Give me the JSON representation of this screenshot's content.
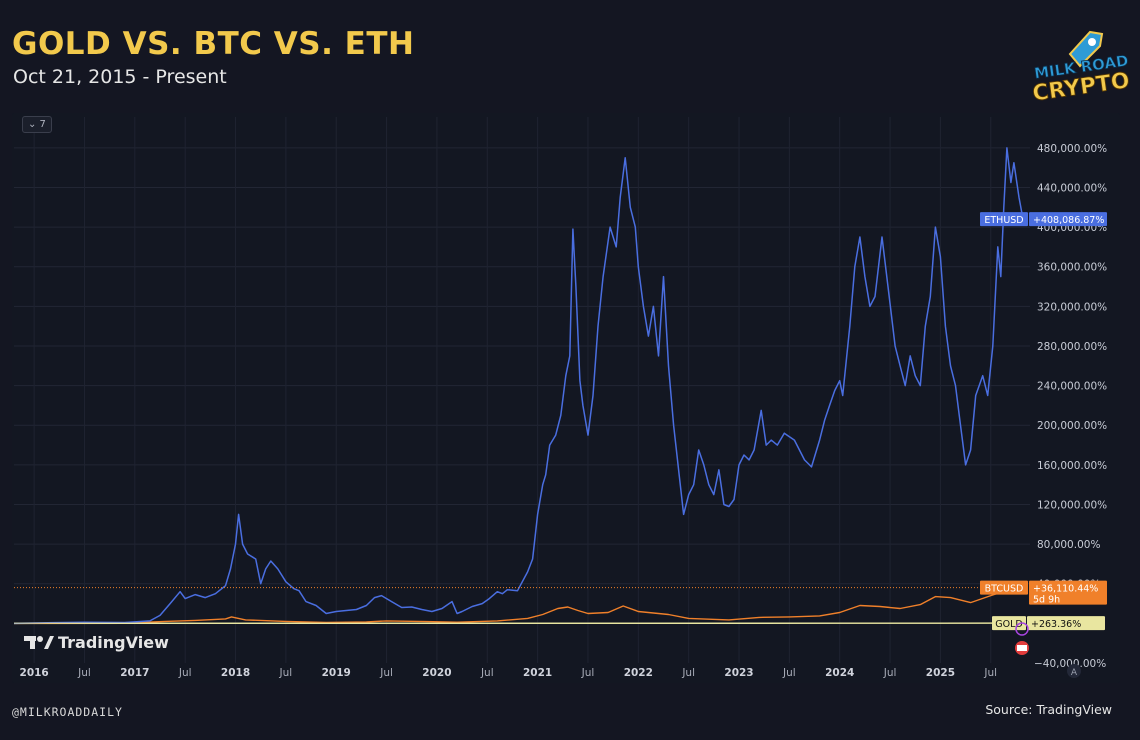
{
  "header": {
    "title": "GOLD VS. BTC VS. ETH",
    "subtitle": "Oct 21, 2015 - Present"
  },
  "logo": {
    "line1": "MILK ROAD",
    "line2": "CRYPTO"
  },
  "toolbar": {
    "collapse_label": "⌄ 7"
  },
  "watermark": {
    "brand": "TradingView",
    "icon": "tradingview-logo-icon"
  },
  "footer": {
    "handle": "@MILKROADDAILY",
    "source": "Source: TradingView"
  },
  "colors": {
    "eth": "#4a6ee0",
    "btc": "#f0802a",
    "gold": "#e9e6a0",
    "background": "#131722",
    "title": "#f2c94c"
  },
  "extra_y_ticks": [
    {
      "label": "−40,000.00%",
      "value": -40000
    }
  ],
  "price_labels": [
    {
      "symbol": "ETHUSD",
      "value_text": "+408,086.87%",
      "extra": "",
      "value": 408086.87,
      "series": "ETH"
    },
    {
      "symbol": "BTCUSD",
      "value_text": "+36,110.44%",
      "extra": "5d 9h",
      "value": 36110.44,
      "series": "BTC"
    },
    {
      "symbol": "GOLD",
      "value_text": "+263.36%",
      "extra": "",
      "value": 263.36,
      "series": "GOLD"
    }
  ],
  "scale_button": "A",
  "chart_data": {
    "type": "line",
    "title": "GOLD VS. BTC VS. ETH",
    "subtitle": "Oct 21, 2015 - Present",
    "xlabel": "",
    "ylabel": "",
    "y_unit": "% change",
    "ylim": [
      -40000,
      495000
    ],
    "y_ticks": [
      480000,
      440000,
      400000,
      360000,
      320000,
      280000,
      240000,
      200000,
      160000,
      120000,
      80000,
      40000
    ],
    "y_tick_labels": [
      "480,000.00%",
      "440,000.00%",
      "400,000.00%",
      "360,000.00%",
      "320,000.00%",
      "280,000.00%",
      "240,000.00%",
      "200,000.00%",
      "160,000.00%",
      "120,000.00%",
      "80,000.00%",
      "40,000.00%"
    ],
    "xlim": [
      2015.8,
      2025.85
    ],
    "x_ticks": [
      {
        "label": "2016",
        "x": 2016.0,
        "bold": true
      },
      {
        "label": "Jul",
        "x": 2016.5,
        "bold": false
      },
      {
        "label": "2017",
        "x": 2017.0,
        "bold": true
      },
      {
        "label": "Jul",
        "x": 2017.5,
        "bold": false
      },
      {
        "label": "2018",
        "x": 2018.0,
        "bold": true
      },
      {
        "label": "Jul",
        "x": 2018.5,
        "bold": false
      },
      {
        "label": "2019",
        "x": 2019.0,
        "bold": true
      },
      {
        "label": "Jul",
        "x": 2019.5,
        "bold": false
      },
      {
        "label": "2020",
        "x": 2020.0,
        "bold": true
      },
      {
        "label": "Jul",
        "x": 2020.5,
        "bold": false
      },
      {
        "label": "2021",
        "x": 2021.0,
        "bold": true
      },
      {
        "label": "Jul",
        "x": 2021.5,
        "bold": false
      },
      {
        "label": "2022",
        "x": 2022.0,
        "bold": true
      },
      {
        "label": "Jul",
        "x": 2022.5,
        "bold": false
      },
      {
        "label": "2023",
        "x": 2023.0,
        "bold": true
      },
      {
        "label": "Jul",
        "x": 2023.5,
        "bold": false
      },
      {
        "label": "2024",
        "x": 2024.0,
        "bold": true
      },
      {
        "label": "Jul",
        "x": 2024.5,
        "bold": false
      },
      {
        "label": "2025",
        "x": 2025.0,
        "bold": true
      },
      {
        "label": "Jul",
        "x": 2025.5,
        "bold": false
      }
    ],
    "grid": true,
    "legend": "none",
    "series": [
      {
        "name": "ETHUSD",
        "color": "#4a6ee0",
        "points": [
          [
            2015.8,
            0
          ],
          [
            2016.2,
            800
          ],
          [
            2016.5,
            1200
          ],
          [
            2016.9,
            900
          ],
          [
            2017.15,
            2500
          ],
          [
            2017.25,
            8000
          ],
          [
            2017.35,
            20000
          ],
          [
            2017.45,
            32000
          ],
          [
            2017.5,
            25000
          ],
          [
            2017.6,
            29000
          ],
          [
            2017.7,
            26000
          ],
          [
            2017.8,
            30000
          ],
          [
            2017.9,
            38000
          ],
          [
            2017.95,
            55000
          ],
          [
            2018.0,
            80000
          ],
          [
            2018.03,
            110000
          ],
          [
            2018.07,
            80000
          ],
          [
            2018.12,
            70000
          ],
          [
            2018.2,
            65000
          ],
          [
            2018.25,
            40000
          ],
          [
            2018.3,
            55000
          ],
          [
            2018.35,
            63000
          ],
          [
            2018.42,
            55000
          ],
          [
            2018.5,
            42000
          ],
          [
            2018.58,
            35000
          ],
          [
            2018.63,
            33000
          ],
          [
            2018.7,
            22000
          ],
          [
            2018.8,
            18000
          ],
          [
            2018.9,
            10000
          ],
          [
            2019.0,
            12000
          ],
          [
            2019.1,
            13000
          ],
          [
            2019.2,
            14000
          ],
          [
            2019.3,
            18000
          ],
          [
            2019.38,
            26000
          ],
          [
            2019.45,
            28000
          ],
          [
            2019.55,
            22000
          ],
          [
            2019.65,
            16000
          ],
          [
            2019.75,
            16500
          ],
          [
            2019.85,
            14000
          ],
          [
            2019.95,
            12000
          ],
          [
            2020.05,
            15000
          ],
          [
            2020.15,
            22000
          ],
          [
            2020.2,
            10000
          ],
          [
            2020.25,
            12000
          ],
          [
            2020.35,
            17000
          ],
          [
            2020.45,
            20000
          ],
          [
            2020.52,
            25000
          ],
          [
            2020.6,
            32000
          ],
          [
            2020.65,
            30000
          ],
          [
            2020.7,
            34000
          ],
          [
            2020.8,
            33000
          ],
          [
            2020.9,
            52000
          ],
          [
            2020.95,
            65000
          ],
          [
            2021.0,
            110000
          ],
          [
            2021.05,
            140000
          ],
          [
            2021.08,
            150000
          ],
          [
            2021.12,
            180000
          ],
          [
            2021.18,
            190000
          ],
          [
            2021.23,
            210000
          ],
          [
            2021.28,
            250000
          ],
          [
            2021.32,
            270000
          ],
          [
            2021.35,
            398000
          ],
          [
            2021.38,
            340000
          ],
          [
            2021.42,
            245000
          ],
          [
            2021.45,
            220000
          ],
          [
            2021.5,
            190000
          ],
          [
            2021.55,
            230000
          ],
          [
            2021.6,
            300000
          ],
          [
            2021.65,
            350000
          ],
          [
            2021.72,
            400000
          ],
          [
            2021.78,
            380000
          ],
          [
            2021.82,
            430000
          ],
          [
            2021.87,
            470000
          ],
          [
            2021.92,
            420000
          ],
          [
            2021.97,
            400000
          ],
          [
            2022.0,
            360000
          ],
          [
            2022.05,
            320000
          ],
          [
            2022.1,
            290000
          ],
          [
            2022.15,
            320000
          ],
          [
            2022.2,
            270000
          ],
          [
            2022.25,
            350000
          ],
          [
            2022.3,
            260000
          ],
          [
            2022.35,
            200000
          ],
          [
            2022.4,
            155000
          ],
          [
            2022.45,
            110000
          ],
          [
            2022.5,
            130000
          ],
          [
            2022.55,
            140000
          ],
          [
            2022.6,
            175000
          ],
          [
            2022.65,
            160000
          ],
          [
            2022.7,
            140000
          ],
          [
            2022.75,
            130000
          ],
          [
            2022.8,
            155000
          ],
          [
            2022.85,
            120000
          ],
          [
            2022.9,
            118000
          ],
          [
            2022.95,
            125000
          ],
          [
            2023.0,
            160000
          ],
          [
            2023.05,
            170000
          ],
          [
            2023.1,
            165000
          ],
          [
            2023.15,
            175000
          ],
          [
            2023.22,
            215000
          ],
          [
            2023.27,
            180000
          ],
          [
            2023.32,
            185000
          ],
          [
            2023.38,
            180000
          ],
          [
            2023.45,
            192000
          ],
          [
            2023.55,
            185000
          ],
          [
            2023.65,
            165000
          ],
          [
            2023.72,
            158000
          ],
          [
            2023.8,
            185000
          ],
          [
            2023.85,
            205000
          ],
          [
            2023.9,
            220000
          ],
          [
            2023.95,
            235000
          ],
          [
            2024.0,
            245000
          ],
          [
            2024.03,
            230000
          ],
          [
            2024.1,
            300000
          ],
          [
            2024.15,
            360000
          ],
          [
            2024.2,
            390000
          ],
          [
            2024.25,
            350000
          ],
          [
            2024.3,
            320000
          ],
          [
            2024.35,
            330000
          ],
          [
            2024.42,
            390000
          ],
          [
            2024.48,
            340000
          ],
          [
            2024.55,
            280000
          ],
          [
            2024.6,
            260000
          ],
          [
            2024.65,
            240000
          ],
          [
            2024.7,
            270000
          ],
          [
            2024.75,
            250000
          ],
          [
            2024.8,
            240000
          ],
          [
            2024.85,
            300000
          ],
          [
            2024.9,
            330000
          ],
          [
            2024.95,
            400000
          ],
          [
            2025.0,
            370000
          ],
          [
            2025.05,
            300000
          ],
          [
            2025.1,
            260000
          ],
          [
            2025.15,
            240000
          ],
          [
            2025.2,
            200000
          ],
          [
            2025.25,
            160000
          ],
          [
            2025.3,
            175000
          ],
          [
            2025.35,
            230000
          ],
          [
            2025.42,
            250000
          ],
          [
            2025.47,
            230000
          ],
          [
            2025.52,
            280000
          ],
          [
            2025.57,
            380000
          ],
          [
            2025.6,
            350000
          ],
          [
            2025.63,
            420000
          ],
          [
            2025.66,
            480000
          ],
          [
            2025.7,
            445000
          ],
          [
            2025.73,
            465000
          ],
          [
            2025.78,
            430000
          ],
          [
            2025.82,
            408087
          ]
        ]
      },
      {
        "name": "BTCUSD",
        "color": "#f0802a",
        "points": [
          [
            2015.8,
            0
          ],
          [
            2016.5,
            500
          ],
          [
            2017.0,
            700
          ],
          [
            2017.3,
            2000
          ],
          [
            2017.6,
            3000
          ],
          [
            2017.9,
            4500
          ],
          [
            2017.96,
            6500
          ],
          [
            2018.1,
            3500
          ],
          [
            2018.5,
            2000
          ],
          [
            2018.9,
            1000
          ],
          [
            2019.3,
            1500
          ],
          [
            2019.5,
            2500
          ],
          [
            2019.9,
            1800
          ],
          [
            2020.2,
            1200
          ],
          [
            2020.6,
            2500
          ],
          [
            2020.9,
            5000
          ],
          [
            2021.05,
            9000
          ],
          [
            2021.2,
            15000
          ],
          [
            2021.3,
            16500
          ],
          [
            2021.4,
            13000
          ],
          [
            2021.5,
            10000
          ],
          [
            2021.7,
            11000
          ],
          [
            2021.85,
            17500
          ],
          [
            2022.0,
            12000
          ],
          [
            2022.3,
            9000
          ],
          [
            2022.5,
            5000
          ],
          [
            2022.9,
            3500
          ],
          [
            2023.2,
            6000
          ],
          [
            2023.5,
            6500
          ],
          [
            2023.8,
            7500
          ],
          [
            2024.0,
            11000
          ],
          [
            2024.2,
            18000
          ],
          [
            2024.4,
            17000
          ],
          [
            2024.6,
            15000
          ],
          [
            2024.8,
            19000
          ],
          [
            2024.95,
            27000
          ],
          [
            2025.1,
            26000
          ],
          [
            2025.3,
            21000
          ],
          [
            2025.5,
            28000
          ],
          [
            2025.65,
            33000
          ],
          [
            2025.82,
            36110
          ]
        ]
      },
      {
        "name": "GOLD",
        "color": "#e9e6a0",
        "points": [
          [
            2015.8,
            0
          ],
          [
            2018.0,
            40
          ],
          [
            2020.0,
            80
          ],
          [
            2022.0,
            100
          ],
          [
            2024.0,
            150
          ],
          [
            2025.0,
            220
          ],
          [
            2025.82,
            263
          ]
        ]
      }
    ]
  }
}
